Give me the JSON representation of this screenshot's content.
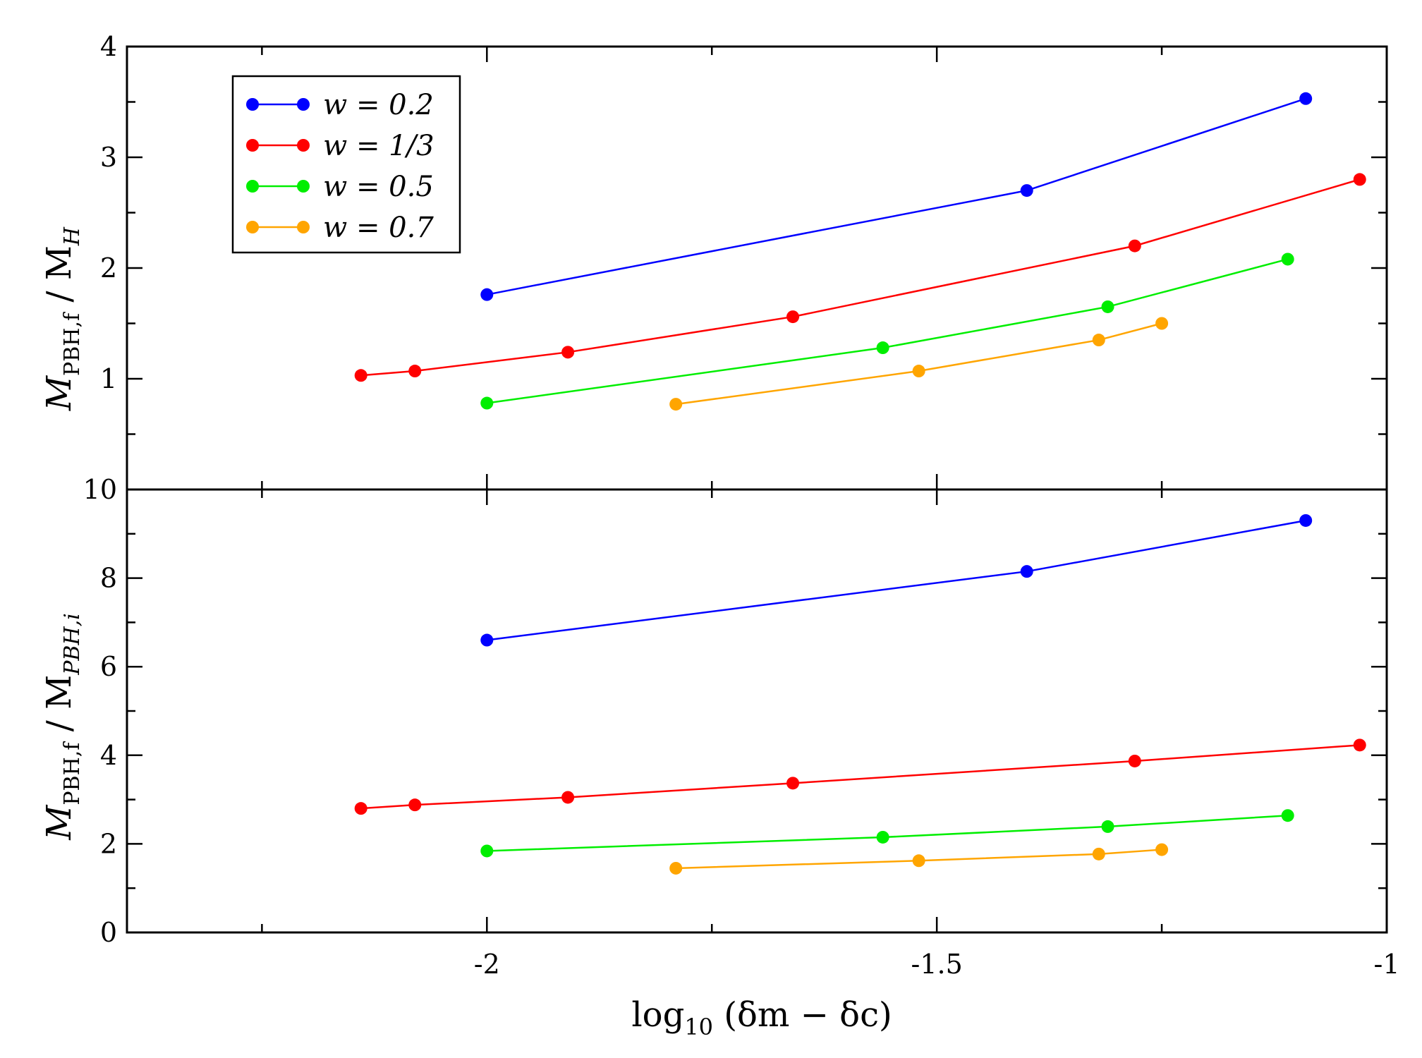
{
  "chart_data": [
    {
      "type": "line",
      "panel": "top",
      "title": "",
      "xlabel": "",
      "ylabel_main": "M",
      "ylabel_sub": "PBH,f",
      "ylabel_tail": " / M",
      "ylabel_tail_sub": "H",
      "xlim": [
        -2.4,
        -1.0
      ],
      "ylim": [
        0,
        4
      ],
      "yticks": [
        "1",
        "2",
        "3",
        "4"
      ],
      "legend_position": "top-left",
      "series": [
        {
          "name": "w = 0.2",
          "color": "#0000ff",
          "x": [
            -2.0,
            -1.4,
            -1.09
          ],
          "y": [
            1.76,
            2.7,
            3.53
          ]
        },
        {
          "name": "w = 1/3",
          "color": "#ff0000",
          "x": [
            -2.14,
            -2.08,
            -1.91,
            -1.66,
            -1.28,
            -1.03
          ],
          "y": [
            1.03,
            1.07,
            1.24,
            1.56,
            2.2,
            2.8
          ]
        },
        {
          "name": "w = 0.5",
          "color": "#00ee00",
          "x": [
            -2.0,
            -1.56,
            -1.31,
            -1.11
          ],
          "y": [
            0.78,
            1.28,
            1.65,
            2.08
          ]
        },
        {
          "name": "w = 0.7",
          "color": "#ffa500",
          "x": [
            -1.79,
            -1.52,
            -1.32,
            -1.25
          ],
          "y": [
            0.77,
            1.07,
            1.35,
            1.5
          ]
        }
      ]
    },
    {
      "type": "line",
      "panel": "bottom",
      "title": "",
      "xlabel_main": "log",
      "xlabel_sub": "10",
      "xlabel_tail": " (δm − δc)",
      "ylabel_main": "M",
      "ylabel_sub": "PBH,f",
      "ylabel_tail": " / M",
      "ylabel_tail_sub": "PBH,i",
      "xlim": [
        -2.4,
        -1.0
      ],
      "ylim": [
        0,
        10
      ],
      "xticks": [
        "-2",
        "-1.5",
        "-1"
      ],
      "yticks": [
        "0",
        "2",
        "4",
        "6",
        "8",
        "10"
      ],
      "series": [
        {
          "name": "w = 0.2",
          "color": "#0000ff",
          "x": [
            -2.0,
            -1.4,
            -1.09
          ],
          "y": [
            6.6,
            8.15,
            9.3
          ]
        },
        {
          "name": "w = 1/3",
          "color": "#ff0000",
          "x": [
            -2.14,
            -2.08,
            -1.91,
            -1.66,
            -1.28,
            -1.03
          ],
          "y": [
            2.8,
            2.88,
            3.05,
            3.37,
            3.87,
            4.23
          ]
        },
        {
          "name": "w = 0.5",
          "color": "#00ee00",
          "x": [
            -2.0,
            -1.56,
            -1.31,
            -1.11
          ],
          "y": [
            1.84,
            2.15,
            2.39,
            2.64
          ]
        },
        {
          "name": "w = 0.7",
          "color": "#ffa500",
          "x": [
            -1.79,
            -1.52,
            -1.32,
            -1.25
          ],
          "y": [
            1.45,
            1.62,
            1.77,
            1.87
          ]
        }
      ]
    }
  ],
  "legend": [
    {
      "label": "w = 0.2",
      "color": "#0000ff"
    },
    {
      "label": "w = 1/3",
      "color": "#ff0000"
    },
    {
      "label": "w = 0.5",
      "color": "#00ee00"
    },
    {
      "label": "w = 0.7",
      "color": "#ffa500"
    }
  ]
}
